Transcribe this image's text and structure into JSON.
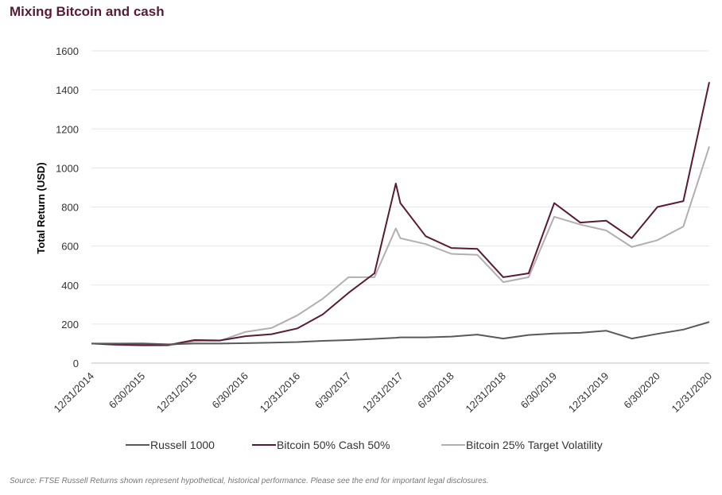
{
  "header": {
    "title": "Mixing Bitcoin and cash"
  },
  "footer": {
    "source": "Source: FTSE Russell Returns shown represent hypothetical, historical performance. Please see the end for important legal disclosures."
  },
  "chart_data": {
    "type": "line",
    "title": "Mixing Bitcoin and cash",
    "ylabel": "Total Return (USD)",
    "xlabel": "",
    "ylim": [
      0,
      1600
    ],
    "yticks": [
      0,
      200,
      400,
      600,
      800,
      1000,
      1200,
      1400,
      1600
    ],
    "x_tick_labels": [
      "12/31/2014",
      "6/30/2015",
      "12/31/2015",
      "6/30/2016",
      "12/31/2016",
      "6/30/2017",
      "12/31/2017",
      "6/30/2018",
      "12/31/2018",
      "6/30/2019",
      "12/31/2019",
      "6/30/2020",
      "12/31/2020"
    ],
    "x": [
      "12/31/2014",
      "3/31/2015",
      "6/30/2015",
      "9/30/2015",
      "12/31/2015",
      "3/31/2016",
      "6/30/2016",
      "9/30/2016",
      "12/31/2016",
      "3/31/2017",
      "6/30/2017",
      "9/30/2017",
      "12/15/2017",
      "12/31/2017",
      "3/31/2018",
      "6/30/2018",
      "9/30/2018",
      "12/31/2018",
      "3/31/2019",
      "6/30/2019",
      "9/30/2019",
      "12/31/2019",
      "3/31/2020",
      "6/30/2020",
      "9/30/2020",
      "12/31/2020"
    ],
    "grid": true,
    "legend_position": "bottom",
    "series": [
      {
        "name": "Russell 1000",
        "color": "#595959",
        "values": [
          100,
          100,
          101,
          96,
          100,
          100,
          102,
          105,
          108,
          114,
          118,
          124,
          130,
          132,
          132,
          136,
          146,
          126,
          144,
          152,
          155,
          166,
          126,
          150,
          172,
          211
        ]
      },
      {
        "name": "Bitcoin 50% Cash 50%",
        "color": "#5b1a33",
        "values": [
          100,
          95,
          92,
          93,
          118,
          116,
          138,
          148,
          178,
          250,
          360,
          460,
          920,
          820,
          650,
          590,
          585,
          440,
          460,
          820,
          720,
          730,
          640,
          800,
          830,
          1440
        ]
      },
      {
        "name": "Bitcoin 25% Target Volatility",
        "color": "#b3aeb1",
        "values": [
          100,
          93,
          90,
          90,
          112,
          115,
          160,
          180,
          245,
          330,
          440,
          440,
          690,
          640,
          610,
          560,
          555,
          415,
          440,
          750,
          710,
          680,
          595,
          630,
          700,
          1110
        ]
      }
    ]
  }
}
